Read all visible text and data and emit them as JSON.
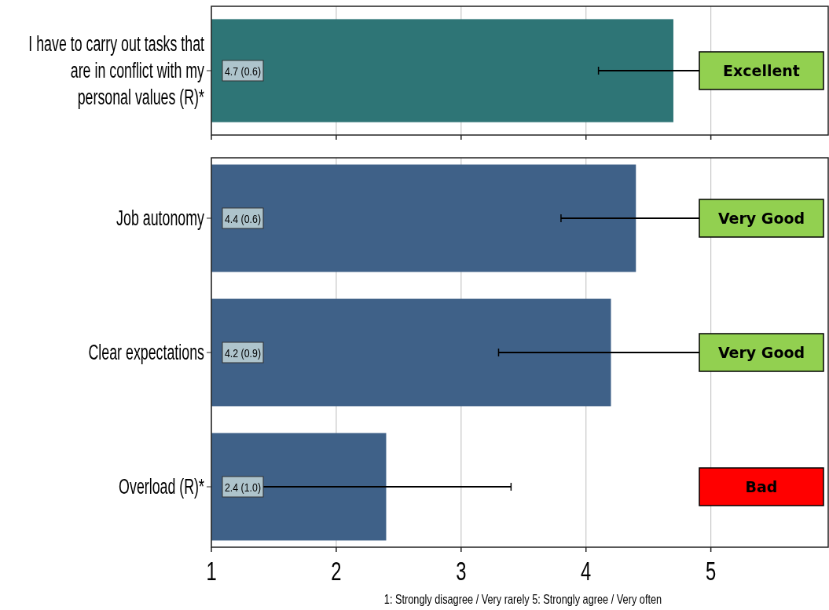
{
  "chart_data": [
    {
      "type": "bar",
      "orientation": "horizontal",
      "categories": [
        "I have to carry out tasks that are in conflict with my personal values (R)*"
      ],
      "series": [
        {
          "color": "#2e7576",
          "values": [
            4.7
          ],
          "errors": [
            0.6
          ],
          "value_labels": [
            "4.7 (0.6)"
          ]
        }
      ],
      "xlim": [
        1,
        5.94
      ],
      "xticks": [
        1,
        2,
        3,
        4,
        5
      ],
      "grid": "x",
      "tick_labels": "y",
      "annotations": [
        "Excellent"
      ]
    },
    {
      "type": "bar",
      "orientation": "horizontal",
      "categories": [
        "Job autonomy",
        "Clear expectations",
        "Overload (R)*"
      ],
      "series": [
        {
          "color": "#3f6188",
          "values": [
            4.4,
            4.2,
            2.4
          ],
          "errors": [
            0.6,
            0.9,
            1.0
          ],
          "value_labels": [
            "4.4 (0.6)",
            "4.2 (0.9)",
            "2.4 (1.0)"
          ]
        }
      ],
      "xlim": [
        1,
        5.94
      ],
      "xticks": [
        1,
        2,
        3,
        4,
        5
      ],
      "grid": "x",
      "xlabel": "1: Strongly disagree / Very rarely   5: Strongly agree / Very often",
      "annotations": [
        "Very Good",
        "Very Good",
        "Bad"
      ]
    }
  ]
}
